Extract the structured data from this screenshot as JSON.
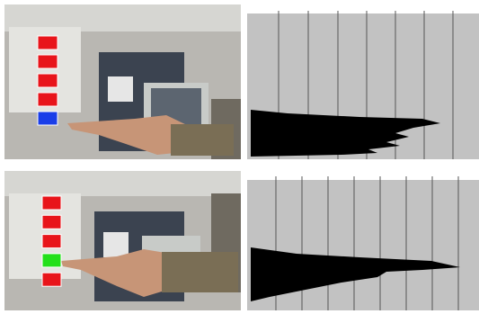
{
  "panels": [
    {
      "indicators": [
        "#e8141a",
        "#e8141a",
        "#e8141a",
        "#e8141a",
        "#1a3ee8"
      ]
    },
    {
      "indicators": [
        "#e8141a",
        "#e8141a",
        "#e8141a",
        "#22e01a",
        "#e8141a"
      ]
    }
  ]
}
